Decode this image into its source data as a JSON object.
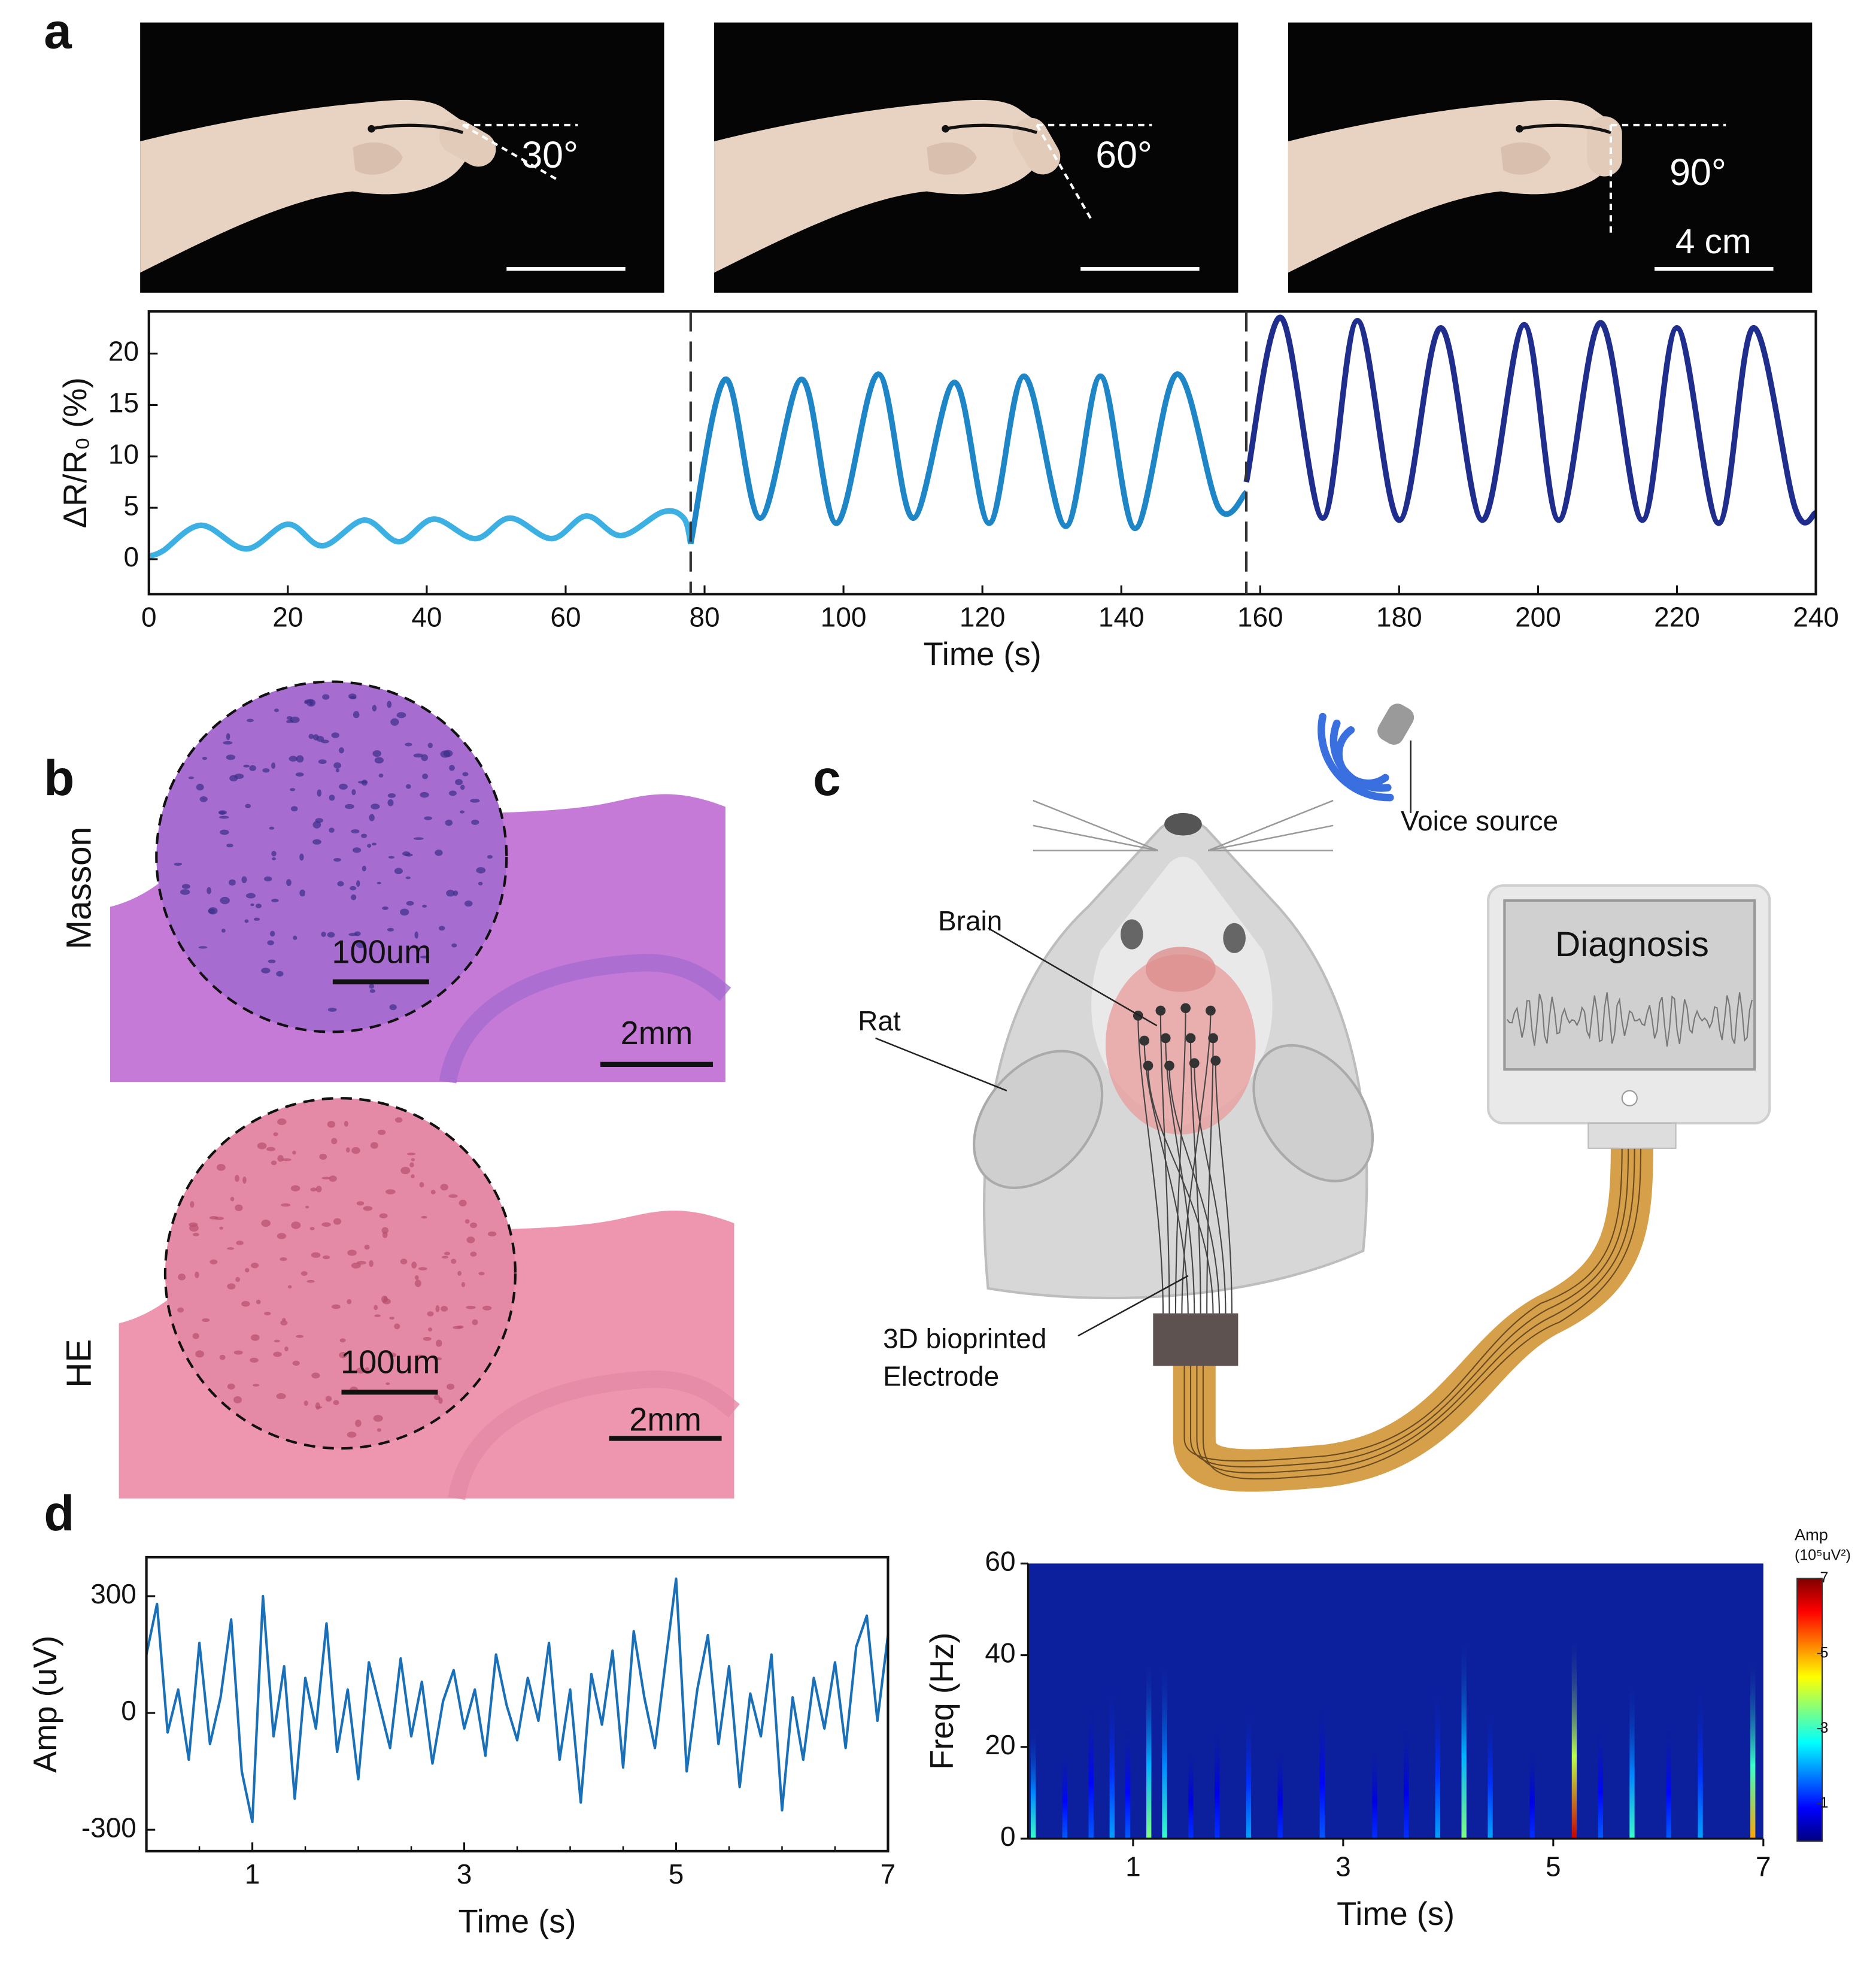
{
  "panel_labels": [
    "a",
    "b",
    "c",
    "d"
  ],
  "photos": [
    {
      "angle": "30°"
    },
    {
      "angle": "60°"
    },
    {
      "angle": "90°",
      "scale": "4 cm"
    }
  ],
  "histology": [
    {
      "stain": "Masson",
      "inset_scale": "100um",
      "scale": "2mm"
    },
    {
      "stain": "HE",
      "inset_scale": "100um",
      "scale": "2mm"
    }
  ],
  "diagram": {
    "voice": "Voice source",
    "brain": "Brain",
    "rat": "Rat",
    "monitor": "Diagnosis",
    "electrode": [
      "3D bioprinted",
      "Electrode"
    ]
  },
  "chart_data": [
    {
      "type": "line",
      "xlabel": "Time (s)",
      "ylabel": "ΔR/R₀ (%)",
      "xlim": [
        0,
        240
      ],
      "xticks": [
        0,
        20,
        40,
        60,
        80,
        100,
        120,
        140,
        160,
        180,
        200,
        220,
        240
      ],
      "ylim": [
        -3.4,
        24.1
      ],
      "yticks": [
        0,
        5,
        10,
        15,
        20
      ],
      "vlines": [
        78,
        158
      ],
      "series": [
        {
          "color": "#3db0e3",
          "x": [
            0,
            2,
            7.5,
            14,
            20,
            25,
            31,
            36,
            41,
            47,
            52,
            58,
            63,
            68,
            74,
            77,
            78
          ],
          "values": [
            0.3,
            0.8,
            3.3,
            1.0,
            3.4,
            1.3,
            3.8,
            1.7,
            3.9,
            2.0,
            4.0,
            2.0,
            4.2,
            2.3,
            4.6,
            4.0,
            1.5
          ]
        },
        {
          "color": "#1e86c6",
          "x": [
            78,
            83,
            88,
            94,
            99,
            105,
            110,
            116,
            121,
            126,
            132,
            137,
            142,
            148,
            154,
            158
          ],
          "values": [
            1.5,
            17.5,
            4.0,
            17.5,
            3.5,
            18.0,
            4.0,
            17.2,
            3.5,
            17.8,
            3.2,
            17.8,
            3.0,
            18.0,
            5.0,
            6.5
          ]
        },
        {
          "color": "#1f2e8c",
          "x": [
            158,
            163,
            169,
            174,
            180,
            186,
            192,
            198,
            203,
            209,
            215,
            220,
            226,
            231,
            237,
            240
          ],
          "values": [
            7.5,
            23.5,
            4.0,
            23.2,
            3.8,
            22.5,
            3.8,
            22.8,
            3.8,
            23.0,
            3.8,
            22.5,
            3.5,
            22.5,
            5.0,
            4.5
          ]
        }
      ]
    },
    {
      "type": "line",
      "xlabel": "Time (s)",
      "ylabel": "Amp (uV)",
      "xlim": [
        0,
        7
      ],
      "xticks": [
        1,
        3,
        5,
        7
      ],
      "xticks_minor": [
        0.5,
        1.5,
        2,
        2.5,
        3.5,
        4,
        4.5,
        5.5,
        6,
        6.5
      ],
      "ylim": [
        -355,
        400
      ],
      "yticks": [
        -300,
        0,
        300
      ],
      "series": [
        {
          "color": "#1a70b8",
          "x": [
            0,
            0.1,
            0.2,
            0.3,
            0.4,
            0.5,
            0.6,
            0.7,
            0.8,
            0.9,
            1,
            1.1,
            1.2,
            1.3,
            1.4,
            1.5,
            1.6,
            1.7,
            1.8,
            1.9,
            2,
            2.1,
            2.2,
            2.3,
            2.4,
            2.5,
            2.6,
            2.7,
            2.8,
            2.9,
            3,
            3.1,
            3.2,
            3.3,
            3.4,
            3.5,
            3.6,
            3.7,
            3.8,
            3.9,
            4,
            4.1,
            4.2,
            4.3,
            4.4,
            4.5,
            4.6,
            4.7,
            4.8,
            4.9,
            5,
            5.1,
            5.2,
            5.3,
            5.4,
            5.5,
            5.6,
            5.7,
            5.8,
            5.9,
            6,
            6.1,
            6.2,
            6.3,
            6.4,
            6.5,
            6.6,
            6.7,
            6.8,
            6.9,
            7
          ],
          "values": [
            150,
            280,
            -50,
            60,
            -120,
            180,
            -80,
            40,
            240,
            -150,
            -280,
            300,
            -60,
            120,
            -220,
            90,
            -40,
            230,
            -100,
            60,
            -170,
            130,
            20,
            -90,
            140,
            -60,
            80,
            -130,
            30,
            110,
            -40,
            60,
            -110,
            150,
            20,
            -70,
            90,
            -20,
            180,
            -120,
            60,
            -230,
            100,
            -30,
            160,
            -140,
            210,
            40,
            -90,
            130,
            345,
            -150,
            60,
            200,
            -80,
            120,
            -190,
            50,
            -60,
            150,
            -250,
            40,
            -120,
            90,
            -40,
            130,
            -90,
            170,
            250,
            -20,
            200
          ]
        }
      ]
    },
    {
      "type": "heatmap",
      "xlabel": "Time (s)",
      "ylabel": "Freq (Hz)",
      "colormap": "jet",
      "color": "#0c1f9c",
      "xlim": [
        0,
        7
      ],
      "xticks": [
        1,
        3,
        5,
        7
      ],
      "ylim": [
        0,
        60
      ],
      "yticks": [
        0,
        20,
        40,
        60
      ],
      "x": [
        0.05,
        0.35,
        0.6,
        0.8,
        0.95,
        1.15,
        1.3,
        1.55,
        1.8,
        2.1,
        2.4,
        2.8,
        3.3,
        3.6,
        3.9,
        4.15,
        4.4,
        4.8,
        5.2,
        5.45,
        5.75,
        6.1,
        6.4,
        6.9
      ],
      "values": [
        3,
        1.5,
        1.5,
        2,
        1.5,
        3.5,
        3,
        1.2,
        1.2,
        2,
        1.2,
        1.5,
        1.2,
        1.2,
        2,
        3.5,
        2,
        1.2,
        6.5,
        1.5,
        3,
        1.5,
        2,
        5
      ],
      "fmax": [
        25,
        20,
        30,
        35,
        25,
        40,
        40,
        20,
        25,
        30,
        20,
        30,
        20,
        25,
        35,
        45,
        30,
        20,
        45,
        25,
        35,
        25,
        35,
        40
      ],
      "colorbar": {
        "title": "Amp",
        "unit": "(10⁵uV²)",
        "lim": [
          0,
          7
        ],
        "ticks": [
          1,
          3,
          5,
          7
        ]
      }
    }
  ]
}
